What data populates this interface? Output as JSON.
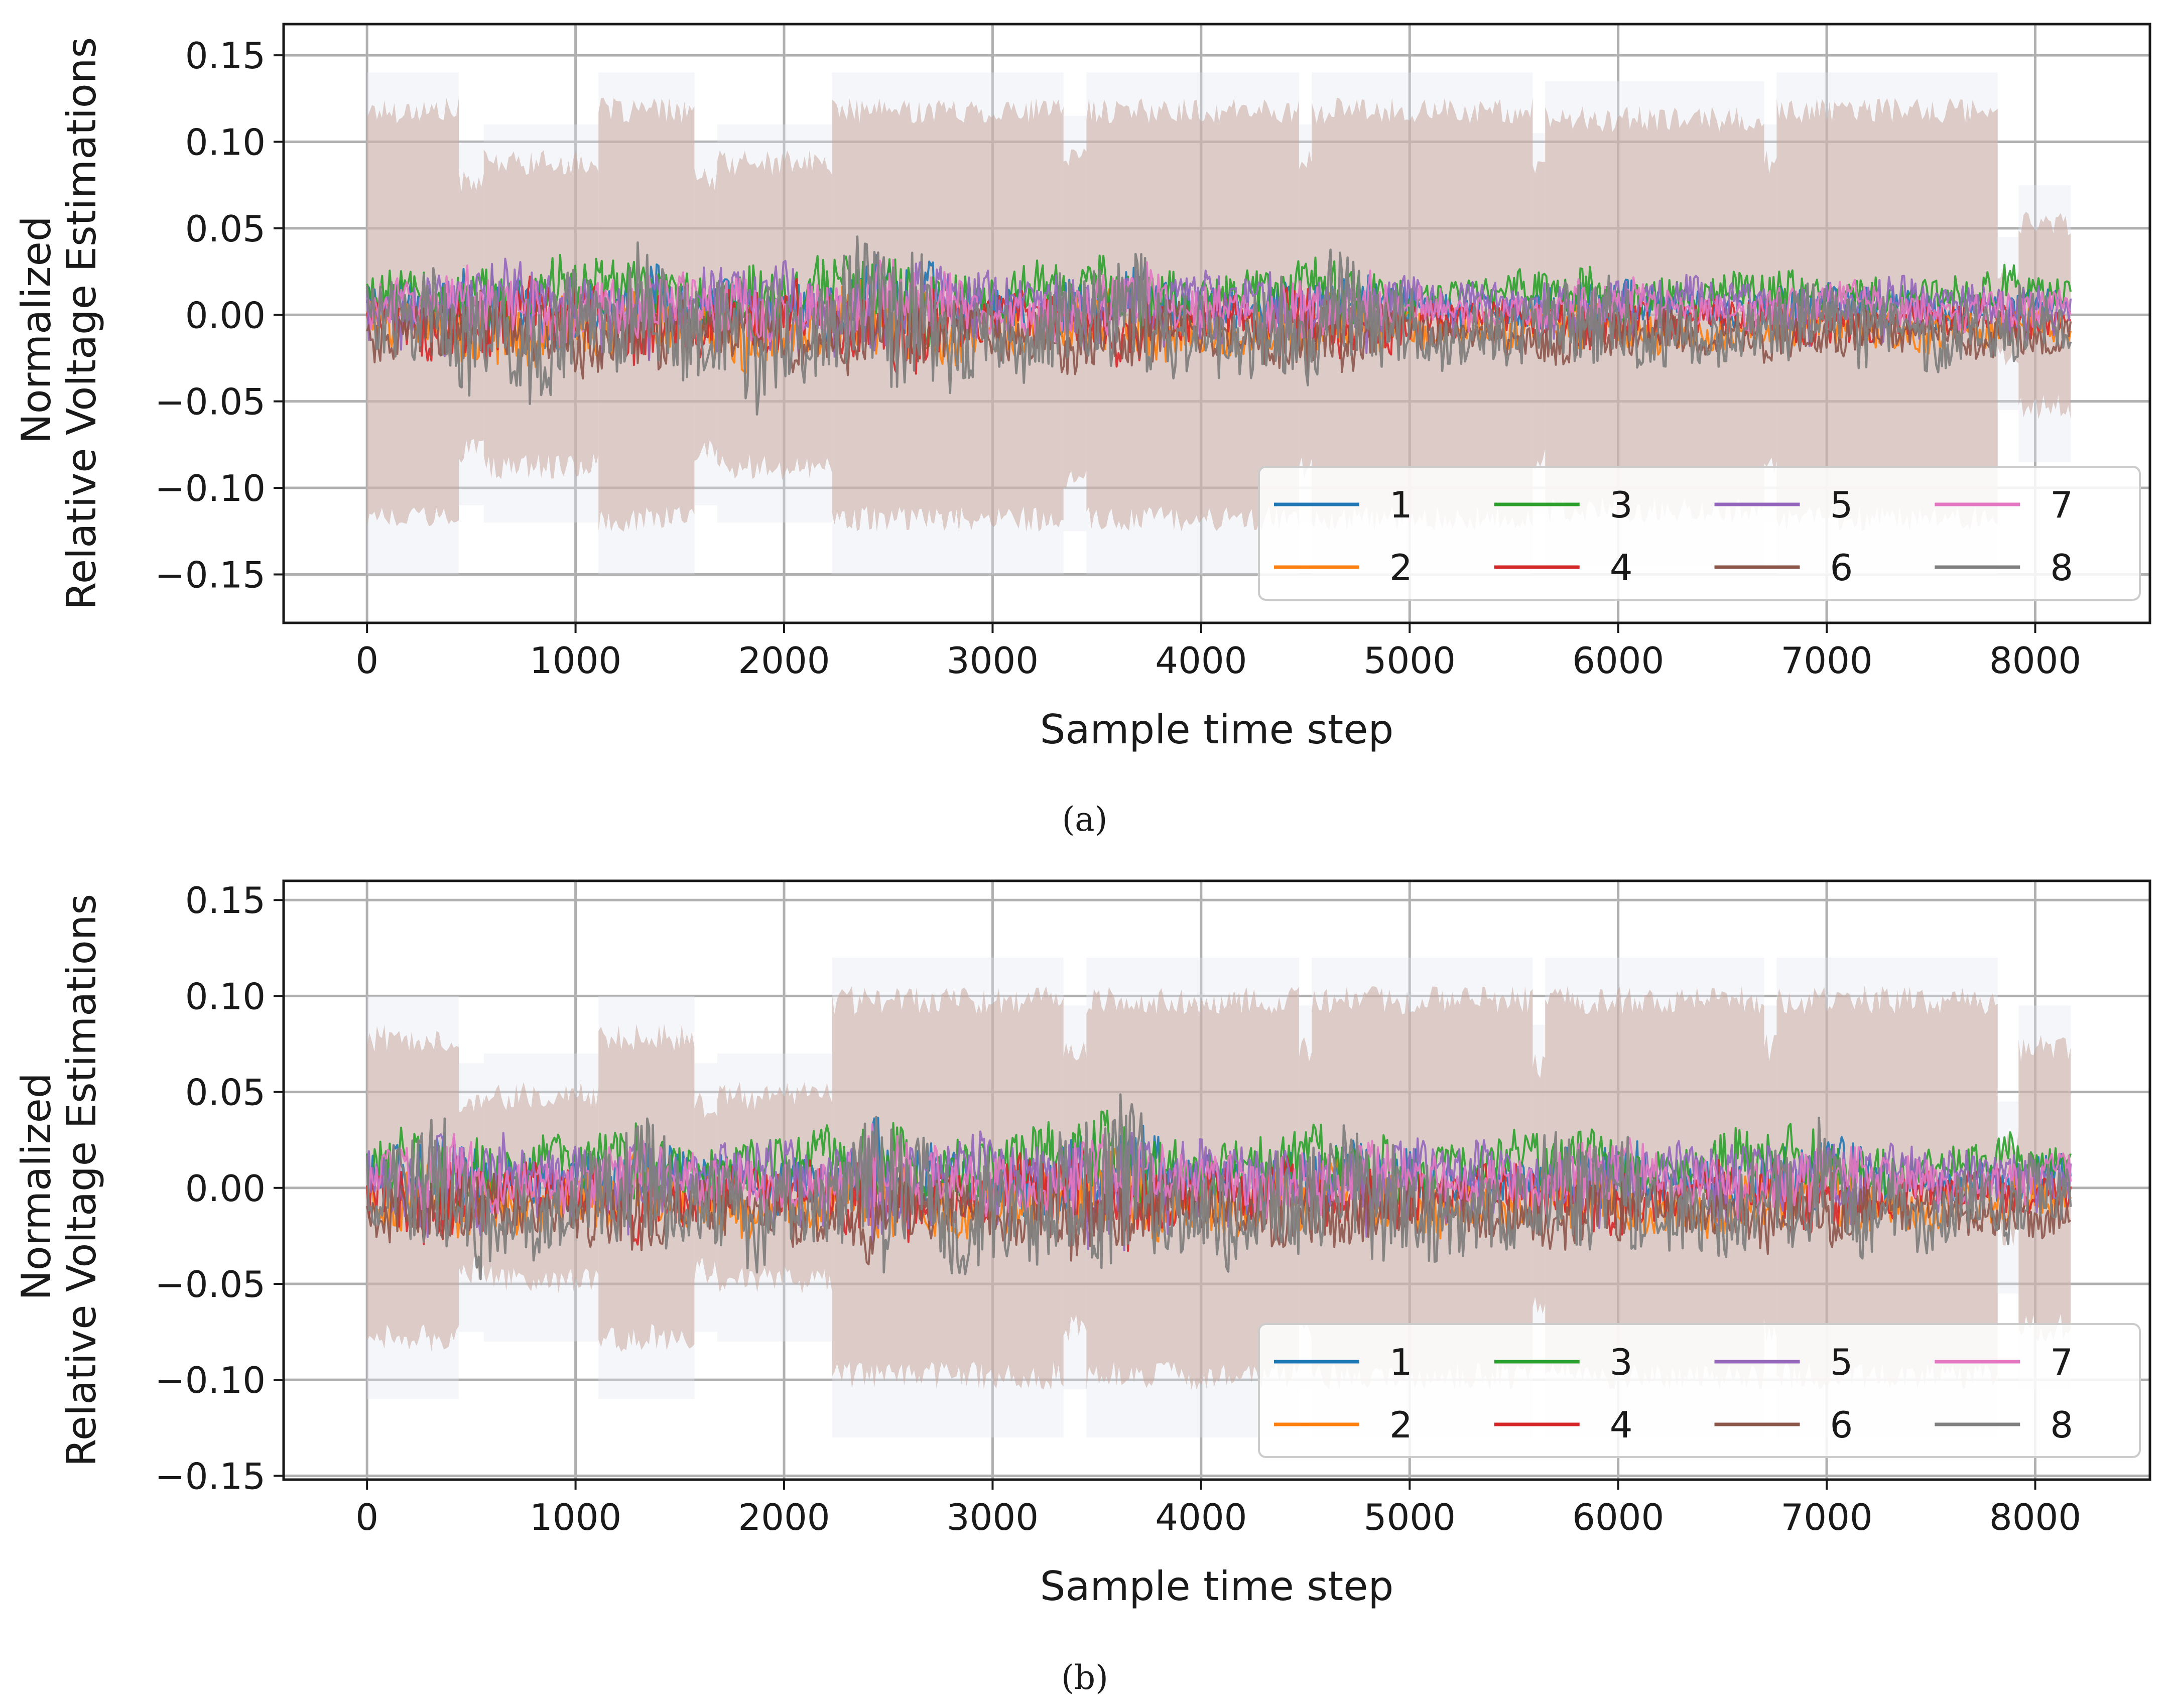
{
  "figure": {
    "panels": [
      {
        "caption": "(a)"
      },
      {
        "caption": "(b)"
      }
    ]
  },
  "chart_data": [
    {
      "type": "line",
      "panel": "(a)",
      "title": "",
      "xlabel": "Sample time step",
      "ylabel_lines": [
        "Normalized",
        "Relative Voltage Estimations"
      ],
      "xlim": [
        -400,
        8550
      ],
      "ylim": [
        -0.178,
        0.168
      ],
      "xticks": [
        0,
        1000,
        2000,
        3000,
        4000,
        5000,
        6000,
        7000,
        8000
      ],
      "xtick_labels": [
        "0",
        "1000",
        "2000",
        "3000",
        "4000",
        "5000",
        "6000",
        "7000",
        "8000"
      ],
      "yticks": [
        0.15,
        0.1,
        0.05,
        0.0,
        -0.05,
        -0.1,
        -0.15
      ],
      "ytick_labels": [
        "0.15",
        "0.10",
        "0.05",
        "0.00",
        "−0.05",
        "−0.10",
        "−0.15"
      ],
      "grid": true,
      "legend_position": "lower-right",
      "legend_columns": 4,
      "series": [
        {
          "name": "1",
          "color": "#1f77b4"
        },
        {
          "name": "2",
          "color": "#ff7f0e"
        },
        {
          "name": "3",
          "color": "#2ca02c"
        },
        {
          "name": "4",
          "color": "#d62728"
        },
        {
          "name": "5",
          "color": "#9467bd"
        },
        {
          "name": "6",
          "color": "#8c564b"
        },
        {
          "name": "7",
          "color": "#e377c2"
        },
        {
          "name": "8",
          "color": "#7f7f7f"
        }
      ],
      "x_range": [
        0,
        8170
      ],
      "uncertainty_band": {
        "color": "#c9a89c",
        "segments": [
          {
            "x": [
              0,
              440
            ],
            "half_width": 0.115
          },
          {
            "x": [
              440,
              560
            ],
            "half_width": 0.075
          },
          {
            "x": [
              560,
              1110
            ],
            "half_width": 0.085
          },
          {
            "x": [
              1110,
              1570
            ],
            "half_width": 0.115
          },
          {
            "x": [
              1570,
              1680
            ],
            "half_width": 0.075
          },
          {
            "x": [
              1680,
              2230
            ],
            "half_width": 0.085
          },
          {
            "x": [
              2230,
              3340
            ],
            "half_width": 0.115
          },
          {
            "x": [
              3340,
              3450
            ],
            "half_width": 0.09
          },
          {
            "x": [
              3450,
              4470
            ],
            "half_width": 0.115
          },
          {
            "x": [
              4470,
              4530
            ],
            "half_width": 0.085
          },
          {
            "x": [
              4530,
              5590
            ],
            "half_width": 0.115
          },
          {
            "x": [
              5590,
              5650
            ],
            "half_width": 0.08
          },
          {
            "x": [
              5650,
              6700
            ],
            "half_width": 0.11
          },
          {
            "x": [
              6700,
              6760
            ],
            "half_width": 0.085
          },
          {
            "x": [
              6760,
              7820
            ],
            "half_width": 0.115
          },
          {
            "x": [
              7820,
              7920
            ],
            "half_width": 0.02
          },
          {
            "x": [
              7920,
              8170
            ],
            "half_width": 0.05
          }
        ]
      },
      "signal_envelope": [
        {
          "x": 0,
          "amp": 0.03
        },
        {
          "x": 200,
          "amp": 0.035
        },
        {
          "x": 400,
          "amp": 0.045
        },
        {
          "x": 700,
          "amp": 0.05
        },
        {
          "x": 900,
          "amp": 0.045
        },
        {
          "x": 1150,
          "amp": 0.045
        },
        {
          "x": 1300,
          "amp": 0.05
        },
        {
          "x": 1500,
          "amp": 0.04
        },
        {
          "x": 1700,
          "amp": 0.04
        },
        {
          "x": 1900,
          "amp": 0.05
        },
        {
          "x": 2200,
          "amp": 0.04
        },
        {
          "x": 2400,
          "amp": 0.055
        },
        {
          "x": 2650,
          "amp": 0.06
        },
        {
          "x": 2900,
          "amp": 0.03
        },
        {
          "x": 3200,
          "amp": 0.035
        },
        {
          "x": 3500,
          "amp": 0.045
        },
        {
          "x": 3700,
          "amp": 0.05
        },
        {
          "x": 3900,
          "amp": 0.035
        },
        {
          "x": 4200,
          "amp": 0.03
        },
        {
          "x": 4550,
          "amp": 0.05
        },
        {
          "x": 4800,
          "amp": 0.04
        },
        {
          "x": 5100,
          "amp": 0.025
        },
        {
          "x": 5500,
          "amp": 0.025
        },
        {
          "x": 5900,
          "amp": 0.035
        },
        {
          "x": 6200,
          "amp": 0.03
        },
        {
          "x": 6500,
          "amp": 0.025
        },
        {
          "x": 6800,
          "amp": 0.03
        },
        {
          "x": 7200,
          "amp": 0.03
        },
        {
          "x": 7600,
          "amp": 0.025
        },
        {
          "x": 7900,
          "amp": 0.03
        },
        {
          "x": 8170,
          "amp": 0.02
        }
      ]
    },
    {
      "type": "line",
      "panel": "(b)",
      "title": "",
      "xlabel": "Sample time step",
      "ylabel_lines": [
        "Normalized",
        "Relative Voltage Estimations"
      ],
      "xlim": [
        -400,
        8550
      ],
      "ylim": [
        -0.152,
        0.16
      ],
      "xticks": [
        0,
        1000,
        2000,
        3000,
        4000,
        5000,
        6000,
        7000,
        8000
      ],
      "xtick_labels": [
        "0",
        "1000",
        "2000",
        "3000",
        "4000",
        "5000",
        "6000",
        "7000",
        "8000"
      ],
      "yticks": [
        0.15,
        0.1,
        0.05,
        0.0,
        -0.05,
        -0.1,
        -0.15
      ],
      "ytick_labels": [
        "0.15",
        "0.10",
        "0.05",
        "0.00",
        "−0.05",
        "−0.10",
        "−0.15"
      ],
      "grid": true,
      "legend_position": "lower-right",
      "legend_columns": 4,
      "series": [
        {
          "name": "1",
          "color": "#1f77b4"
        },
        {
          "name": "2",
          "color": "#ff7f0e"
        },
        {
          "name": "3",
          "color": "#2ca02c"
        },
        {
          "name": "4",
          "color": "#d62728"
        },
        {
          "name": "5",
          "color": "#9467bd"
        },
        {
          "name": "6",
          "color": "#8c564b"
        },
        {
          "name": "7",
          "color": "#e377c2"
        },
        {
          "name": "8",
          "color": "#7f7f7f"
        }
      ],
      "x_range": [
        0,
        8170
      ],
      "uncertainty_band": {
        "color": "#c9a89c",
        "segments": [
          {
            "x": [
              0,
              440
            ],
            "half_width": 0.075
          },
          {
            "x": [
              440,
              560
            ],
            "half_width": 0.04
          },
          {
            "x": [
              560,
              1110
            ],
            "half_width": 0.045
          },
          {
            "x": [
              1110,
              1570
            ],
            "half_width": 0.075
          },
          {
            "x": [
              1570,
              1680
            ],
            "half_width": 0.04
          },
          {
            "x": [
              1680,
              2230
            ],
            "half_width": 0.045
          },
          {
            "x": [
              2230,
              3340
            ],
            "half_width": 0.095
          },
          {
            "x": [
              3340,
              3450
            ],
            "half_width": 0.07
          },
          {
            "x": [
              3450,
              4470
            ],
            "half_width": 0.095
          },
          {
            "x": [
              4470,
              4530
            ],
            "half_width": 0.07
          },
          {
            "x": [
              4530,
              5590
            ],
            "half_width": 0.095
          },
          {
            "x": [
              5590,
              5650
            ],
            "half_width": 0.06
          },
          {
            "x": [
              5650,
              6700
            ],
            "half_width": 0.095
          },
          {
            "x": [
              6700,
              6760
            ],
            "half_width": 0.07
          },
          {
            "x": [
              6760,
              7820
            ],
            "half_width": 0.095
          },
          {
            "x": [
              7820,
              7920
            ],
            "half_width": 0.02
          },
          {
            "x": [
              7920,
              8170
            ],
            "half_width": 0.07
          }
        ]
      },
      "signal_envelope": [
        {
          "x": 0,
          "amp": 0.03
        },
        {
          "x": 200,
          "amp": 0.045
        },
        {
          "x": 400,
          "amp": 0.05
        },
        {
          "x": 700,
          "amp": 0.035
        },
        {
          "x": 900,
          "amp": 0.03
        },
        {
          "x": 1150,
          "amp": 0.04
        },
        {
          "x": 1300,
          "amp": 0.055
        },
        {
          "x": 1500,
          "amp": 0.035
        },
        {
          "x": 1700,
          "amp": 0.035
        },
        {
          "x": 1900,
          "amp": 0.035
        },
        {
          "x": 2200,
          "amp": 0.035
        },
        {
          "x": 2450,
          "amp": 0.06
        },
        {
          "x": 2650,
          "amp": 0.04
        },
        {
          "x": 2900,
          "amp": 0.04
        },
        {
          "x": 3200,
          "amp": 0.04
        },
        {
          "x": 3600,
          "amp": 0.06
        },
        {
          "x": 3900,
          "amp": 0.035
        },
        {
          "x": 4200,
          "amp": 0.035
        },
        {
          "x": 4550,
          "amp": 0.04
        },
        {
          "x": 4900,
          "amp": 0.045
        },
        {
          "x": 5200,
          "amp": 0.03
        },
        {
          "x": 5500,
          "amp": 0.035
        },
        {
          "x": 5800,
          "amp": 0.04
        },
        {
          "x": 6000,
          "amp": 0.045
        },
        {
          "x": 6200,
          "amp": 0.03
        },
        {
          "x": 6500,
          "amp": 0.035
        },
        {
          "x": 6800,
          "amp": 0.04
        },
        {
          "x": 7000,
          "amp": 0.045
        },
        {
          "x": 7300,
          "amp": 0.03
        },
        {
          "x": 7600,
          "amp": 0.025
        },
        {
          "x": 7900,
          "amp": 0.03
        },
        {
          "x": 8170,
          "amp": 0.025
        }
      ]
    }
  ]
}
